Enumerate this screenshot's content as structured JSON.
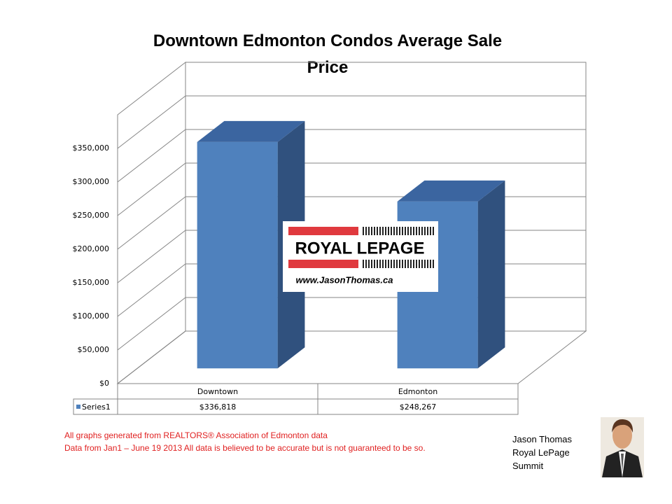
{
  "chart_data": {
    "type": "bar3d",
    "title": "Downtown Edmonton Condos Average Sale Price",
    "categories": [
      "Downtown",
      "Edmonton"
    ],
    "series": [
      {
        "name": "Series1",
        "color": "#4f81bd",
        "values": [
          336818,
          248267
        ],
        "value_labels": [
          "$336,818",
          "$248,267"
        ]
      }
    ],
    "ylim": [
      0,
      400000
    ],
    "yticks": [
      {
        "value": 0,
        "label": "$0"
      },
      {
        "value": 50000,
        "label": "$50,000"
      },
      {
        "value": 100000,
        "label": "$100,000"
      },
      {
        "value": 150000,
        "label": "$150,000"
      },
      {
        "value": 200000,
        "label": "$200,000"
      },
      {
        "value": 250000,
        "label": "$250,000"
      },
      {
        "value": 300000,
        "label": "$300,000"
      },
      {
        "value": 350000,
        "label": "$350,000"
      }
    ],
    "grid": true,
    "data_table": true
  },
  "logo": {
    "brand": "ROYAL LEPAGE",
    "url": "www.JasonThomas.ca"
  },
  "footer": {
    "source": "All graphs generated from REALTORS® Association of Edmonton data",
    "disclaimer": "Data from Jan1 – June 19 2013  All data is believed to be accurate but is not guaranteed to be so."
  },
  "author": {
    "name": "Jason Thomas",
    "company": "Royal LePage",
    "office": "Summit"
  }
}
